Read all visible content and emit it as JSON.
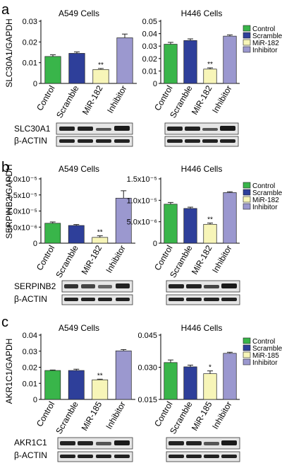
{
  "colors": {
    "control": "#39b54a",
    "scramble": "#2e3f9a",
    "mir": "#f7f5b8",
    "inhibitor": "#9b98cf"
  },
  "chart_data": [
    {
      "type": "bar",
      "panel": "a",
      "title": "A549 Cells",
      "ylabel": "SLC30A1/GAPDH",
      "categories": [
        "Control",
        "Scramble",
        "MiR-182",
        "Inhibitor"
      ],
      "values": [
        0.013,
        0.0145,
        0.0067,
        0.022
      ],
      "errors": [
        0.0008,
        0.0007,
        0.0005,
        0.0018
      ],
      "sig": [
        "",
        "",
        "**",
        ""
      ],
      "ylim": [
        0,
        0.03
      ],
      "yticks": [
        "0",
        "0.01",
        "0.02",
        "0.03"
      ],
      "blot_labels": [
        "SLC30A1",
        "β-ACTIN"
      ]
    },
    {
      "type": "bar",
      "panel": "a",
      "title": "H446 Cells",
      "ylabel": "",
      "categories": [
        "Control",
        "Scramble",
        "MiR-182",
        "Inhibitor"
      ],
      "values": [
        0.0315,
        0.0345,
        0.0115,
        0.038
      ],
      "errors": [
        0.0015,
        0.0013,
        0.001,
        0.001
      ],
      "sig": [
        "",
        "",
        "**",
        ""
      ],
      "ylim": [
        0,
        0.05
      ],
      "yticks": [
        "0",
        "0.01",
        "0.02",
        "0.03",
        "0.04",
        "0.05"
      ],
      "legend": [
        "Control",
        "Scramble",
        "MiR-182",
        "Inhibitor"
      ]
    },
    {
      "type": "bar",
      "panel": "b",
      "title": "A549 Cells",
      "ylabel": "SERPINB2/GAPDH",
      "categories": [
        "Control",
        "Scramble",
        "MiR-182",
        "Inhibitor"
      ],
      "values": [
        6.2e-06,
        5.5e-06,
        1.8e-06,
        1.4e-05
      ],
      "errors": [
        4e-07,
        3e-07,
        5e-07,
        2.3e-06
      ],
      "sig": [
        "",
        "",
        "**",
        ""
      ],
      "ylim": [
        0,
        2e-05
      ],
      "yticks": [
        "0",
        "5.0x10⁻⁶",
        "1.0x10⁻⁵",
        "1.5x10⁻⁵",
        "2.0x10⁻⁵"
      ],
      "blot_labels": [
        "SERPINB2",
        "β-ACTIN"
      ]
    },
    {
      "type": "bar",
      "panel": "b",
      "title": "H446 Cells",
      "ylabel": "",
      "categories": [
        "Control",
        "Scramble",
        "MiR-182",
        "Inhibitor"
      ],
      "values": [
        9.1e-06,
        8.1e-06,
        4.4e-06,
        1.18e-05
      ],
      "errors": [
        4e-07,
        3e-07,
        3e-07,
        2e-07
      ],
      "sig": [
        "",
        "",
        "**",
        ""
      ],
      "ylim": [
        0,
        1.5e-05
      ],
      "yticks": [
        "0",
        "5.0x10⁻⁶",
        "1.0x10⁻⁵",
        "1.5x10⁻⁵"
      ],
      "legend": [
        "Control",
        "Scramble",
        "MiR-182",
        "Inhibitor"
      ]
    },
    {
      "type": "bar",
      "panel": "c",
      "title": "A549 Cells",
      "ylabel": "AKR1C1/GAPDH",
      "categories": [
        "Control",
        "Scramble",
        "MiR-185",
        "Inhibitor"
      ],
      "values": [
        0.018,
        0.018,
        0.0122,
        0.0302
      ],
      "errors": [
        0.0003,
        0.0008,
        0.0004,
        0.0008
      ],
      "sig": [
        "",
        "",
        "**",
        ""
      ],
      "ylim": [
        0,
        0.04
      ],
      "yticks": [
        "0",
        "0.01",
        "0.02",
        "0.03",
        "0.04"
      ],
      "blot_labels": [
        "AKR1C1",
        "β-ACTIN"
      ]
    },
    {
      "type": "bar",
      "panel": "c",
      "title": "H446 Cells",
      "ylabel": "",
      "categories": [
        "Control",
        "Scramble",
        "MiR-185",
        "Inhibitor"
      ],
      "values": [
        0.0322,
        0.0302,
        0.027,
        0.0365
      ],
      "errors": [
        0.0012,
        0.0008,
        0.0013,
        0.0005
      ],
      "sig": [
        "",
        "",
        "*",
        ""
      ],
      "ylim": [
        0.015,
        0.045
      ],
      "yticks": [
        "0.015",
        "0.030",
        "0.045"
      ],
      "legend": [
        "Control",
        "Scramble",
        "MiR-185",
        "Inhibitor"
      ]
    }
  ]
}
